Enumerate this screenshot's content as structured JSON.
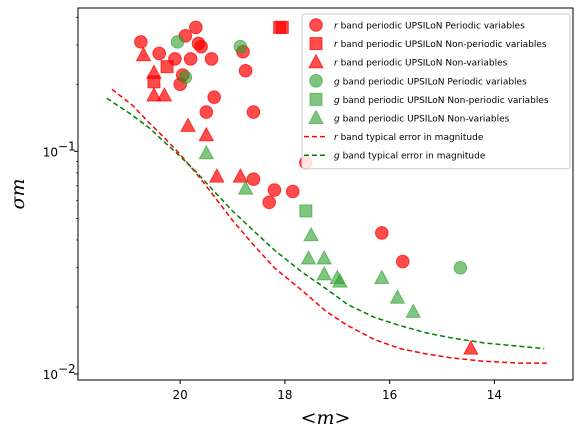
{
  "chart_data": {
    "type": "scatter",
    "title": "",
    "xlabel": "<m>",
    "ylabel": "σm",
    "x_inverted": true,
    "xlim": [
      21.95,
      12.5
    ],
    "ylim": [
      0.0094,
      0.44
    ],
    "y_scale": "log",
    "grid": false,
    "legend_position": "top-right",
    "x_ticks": [
      {
        "value": 20,
        "label": "20"
      },
      {
        "value": 18,
        "label": "18"
      },
      {
        "value": 16,
        "label": "16"
      },
      {
        "value": 14,
        "label": "14"
      }
    ],
    "y_ticks": [
      {
        "value": 0.1,
        "label": "10",
        "exp": "−1"
      },
      {
        "value": 0.01,
        "label": "10",
        "exp": "−2"
      }
    ],
    "series": [
      {
        "name": " band periodic UPSILoN Periodic variables",
        "band": "r",
        "marker": "circle",
        "color": "#ff0000",
        "points": [
          [
            20.75,
            0.31
          ],
          [
            20.4,
            0.275
          ],
          [
            20.1,
            0.26
          ],
          [
            19.7,
            0.36
          ],
          [
            19.9,
            0.33
          ],
          [
            19.65,
            0.305
          ],
          [
            19.6,
            0.295
          ],
          [
            19.8,
            0.26
          ],
          [
            19.4,
            0.26
          ],
          [
            19.95,
            0.22
          ],
          [
            20.0,
            0.2
          ],
          [
            19.35,
            0.175
          ],
          [
            19.5,
            0.15
          ],
          [
            18.8,
            0.28
          ],
          [
            18.75,
            0.23
          ],
          [
            18.6,
            0.15
          ],
          [
            18.6,
            0.075
          ],
          [
            18.2,
            0.067
          ],
          [
            17.85,
            0.066
          ],
          [
            18.3,
            0.059
          ],
          [
            17.6,
            0.089
          ],
          [
            16.15,
            0.043
          ],
          [
            15.75,
            0.032
          ]
        ]
      },
      {
        "name": " band periodic UPSILoN Non-periodic variables",
        "band": "r",
        "marker": "square",
        "color": "#ff0000",
        "points": [
          [
            20.5,
            0.205
          ],
          [
            20.25,
            0.24
          ],
          [
            18.1,
            0.36
          ],
          [
            18.05,
            0.36
          ]
        ]
      },
      {
        "name": " band periodic UPSILoN Non-variables",
        "band": "r",
        "marker": "triangle",
        "color": "#ff0000",
        "points": [
          [
            20.7,
            0.27
          ],
          [
            20.5,
            0.225
          ],
          [
            20.5,
            0.178
          ],
          [
            20.3,
            0.178
          ],
          [
            19.85,
            0.13
          ],
          [
            19.5,
            0.118
          ],
          [
            19.3,
            0.077
          ],
          [
            18.85,
            0.077
          ],
          [
            14.45,
            0.013
          ]
        ]
      },
      {
        "name": " band periodic UPSILoN Periodic variables",
        "band": "g",
        "marker": "circle",
        "color": "#2ca02c",
        "points": [
          [
            20.05,
            0.31
          ],
          [
            19.9,
            0.215
          ],
          [
            18.85,
            0.295
          ],
          [
            14.65,
            0.03
          ]
        ]
      },
      {
        "name": " band periodic UPSILoN Non-periodic variables",
        "band": "g",
        "marker": "square",
        "color": "#2ca02c",
        "points": [
          [
            17.6,
            0.054
          ]
        ]
      },
      {
        "name": " band periodic UPSILoN Non-variables",
        "band": "g",
        "marker": "triangle",
        "color": "#2ca02c",
        "points": [
          [
            19.5,
            0.098
          ],
          [
            18.75,
            0.068
          ],
          [
            17.5,
            0.042
          ],
          [
            17.55,
            0.033
          ],
          [
            17.25,
            0.033
          ],
          [
            17.25,
            0.028
          ],
          [
            17.0,
            0.027
          ],
          [
            16.95,
            0.026
          ],
          [
            16.15,
            0.027
          ],
          [
            15.85,
            0.022
          ],
          [
            15.55,
            0.019
          ]
        ]
      },
      {
        "name": " band typical error in magnitude",
        "band": "r",
        "marker": "line-dashed",
        "color": "#ff0000",
        "points": [
          [
            21.3,
            0.19
          ],
          [
            20.9,
            0.16
          ],
          [
            20.6,
            0.135
          ],
          [
            20.3,
            0.115
          ],
          [
            20.0,
            0.097
          ],
          [
            19.7,
            0.08
          ],
          [
            19.4,
            0.065
          ],
          [
            19.0,
            0.049
          ],
          [
            18.6,
            0.038
          ],
          [
            18.2,
            0.03
          ],
          [
            17.7,
            0.024
          ],
          [
            17.2,
            0.019
          ],
          [
            16.8,
            0.0165
          ],
          [
            16.3,
            0.0143
          ],
          [
            15.8,
            0.013
          ],
          [
            15.3,
            0.0123
          ],
          [
            14.8,
            0.0118
          ],
          [
            14.2,
            0.0114
          ],
          [
            13.5,
            0.0112
          ],
          [
            13.0,
            0.0112
          ]
        ]
      },
      {
        "name": " band typical error in magnitude",
        "band": "g",
        "marker": "line-dashed",
        "color": "#008000",
        "points": [
          [
            21.4,
            0.173
          ],
          [
            21.0,
            0.15
          ],
          [
            20.6,
            0.128
          ],
          [
            20.3,
            0.11
          ],
          [
            20.0,
            0.095
          ],
          [
            19.7,
            0.081
          ],
          [
            19.4,
            0.068
          ],
          [
            19.0,
            0.054
          ],
          [
            18.6,
            0.044
          ],
          [
            18.2,
            0.036
          ],
          [
            17.7,
            0.029
          ],
          [
            17.2,
            0.024
          ],
          [
            16.8,
            0.0205
          ],
          [
            16.3,
            0.018
          ],
          [
            15.8,
            0.0165
          ],
          [
            15.3,
            0.0153
          ],
          [
            14.8,
            0.0145
          ],
          [
            14.2,
            0.0138
          ],
          [
            13.5,
            0.0133
          ],
          [
            13.05,
            0.013
          ]
        ]
      }
    ]
  }
}
